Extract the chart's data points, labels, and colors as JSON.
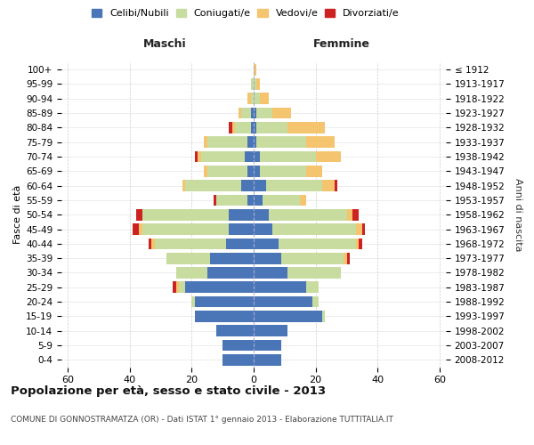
{
  "age_groups": [
    "0-4",
    "5-9",
    "10-14",
    "15-19",
    "20-24",
    "25-29",
    "30-34",
    "35-39",
    "40-44",
    "45-49",
    "50-54",
    "55-59",
    "60-64",
    "65-69",
    "70-74",
    "75-79",
    "80-84",
    "85-89",
    "90-94",
    "95-99",
    "100+"
  ],
  "birth_years": [
    "2008-2012",
    "2003-2007",
    "1998-2002",
    "1993-1997",
    "1988-1992",
    "1983-1987",
    "1978-1982",
    "1973-1977",
    "1968-1972",
    "1963-1967",
    "1958-1962",
    "1953-1957",
    "1948-1952",
    "1943-1947",
    "1938-1942",
    "1933-1937",
    "1928-1932",
    "1923-1927",
    "1918-1922",
    "1913-1917",
    "≤ 1912"
  ],
  "colors": {
    "celibi": "#4a76b8",
    "coniugati": "#c8dca0",
    "vedovi": "#f5c46e",
    "divorziati": "#cc2222"
  },
  "males": {
    "celibi": [
      10,
      10,
      12,
      19,
      19,
      22,
      15,
      14,
      9,
      8,
      8,
      2,
      4,
      2,
      3,
      2,
      1,
      1,
      0,
      0,
      0
    ],
    "coniugati": [
      0,
      0,
      0,
      0,
      1,
      2,
      10,
      14,
      23,
      28,
      28,
      10,
      18,
      13,
      14,
      13,
      5,
      3,
      1,
      1,
      0
    ],
    "vedovi": [
      0,
      0,
      0,
      0,
      0,
      1,
      0,
      0,
      1,
      1,
      0,
      0,
      1,
      1,
      1,
      1,
      1,
      1,
      1,
      0,
      0
    ],
    "divorziati": [
      0,
      0,
      0,
      0,
      0,
      1,
      0,
      0,
      1,
      2,
      2,
      1,
      0,
      0,
      1,
      0,
      1,
      0,
      0,
      0,
      0
    ]
  },
  "females": {
    "nubili": [
      9,
      9,
      11,
      22,
      19,
      17,
      11,
      9,
      8,
      6,
      5,
      3,
      4,
      2,
      2,
      1,
      1,
      1,
      0,
      0,
      0
    ],
    "coniugate": [
      0,
      0,
      0,
      1,
      2,
      4,
      17,
      20,
      25,
      27,
      25,
      12,
      18,
      15,
      18,
      16,
      10,
      5,
      2,
      1,
      0
    ],
    "vedove": [
      0,
      0,
      0,
      0,
      0,
      0,
      0,
      1,
      1,
      2,
      2,
      2,
      4,
      5,
      8,
      9,
      12,
      6,
      3,
      1,
      1
    ],
    "divorziate": [
      0,
      0,
      0,
      0,
      0,
      0,
      0,
      1,
      1,
      1,
      2,
      0,
      1,
      0,
      0,
      0,
      0,
      0,
      0,
      0,
      0
    ]
  },
  "xlim": 62,
  "title": "Popolazione per età, sesso e stato civile - 2013",
  "subtitle": "COMUNE DI GONNOSTRAMATZA (OR) - Dati ISTAT 1° gennaio 2013 - Elaborazione TUTTITALIA.IT",
  "ylabel_left": "Fasce di età",
  "ylabel_right": "Anni di nascita",
  "header_left": "Maschi",
  "header_right": "Femmine",
  "legend_labels": [
    "Celibi/Nubili",
    "Coniugati/e",
    "Vedovi/e",
    "Divorziati/e"
  ],
  "background_color": "#ffffff",
  "bar_height": 0.78
}
